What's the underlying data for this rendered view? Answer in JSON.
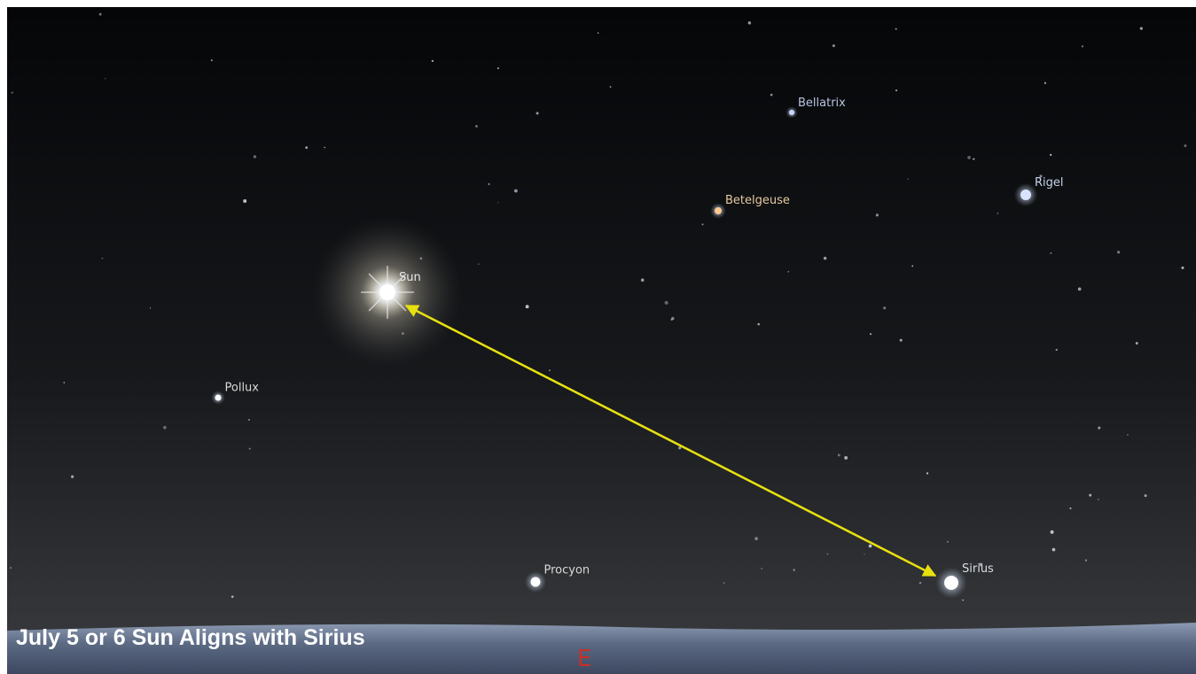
{
  "caption": "July 5 or 6  Sun Aligns  with Sirius",
  "direction": "E",
  "stars": [
    {
      "label": "Bellatrix"
    },
    {
      "label": "Betelgeuse"
    },
    {
      "label": "Rigel"
    },
    {
      "label": "Sun"
    },
    {
      "label": "Pollux"
    },
    {
      "label": "Procyon"
    },
    {
      "label": "Sirius"
    }
  ]
}
